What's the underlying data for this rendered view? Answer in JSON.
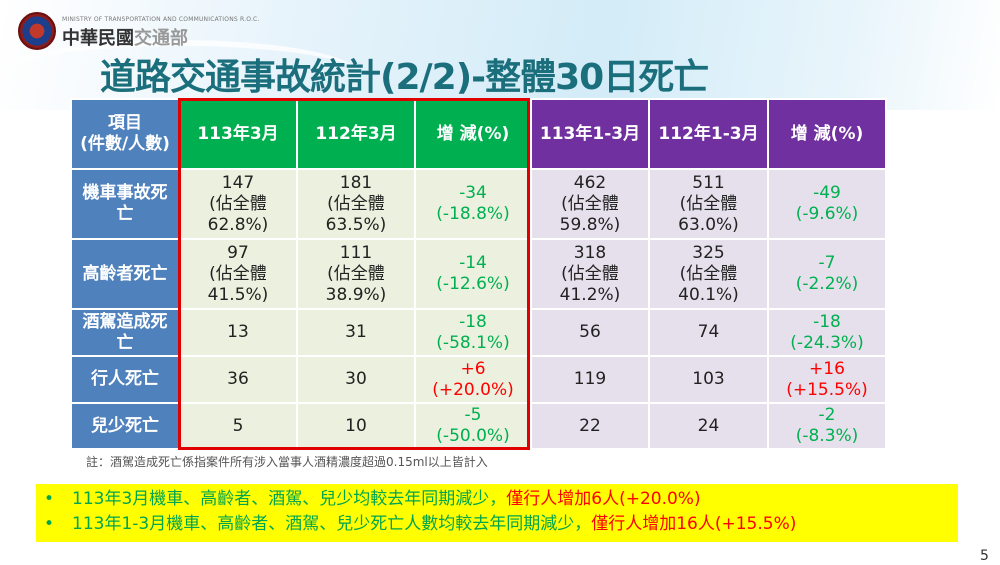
{
  "header": {
    "ministry_en": "MINISTRY OF TRANSPORTATION AND COMMUNICATIONS R.O.C.",
    "ministry_zh_a": "中華民國",
    "ministry_zh_b": "交通部",
    "title": "道路交通事故統計(2/2)-整體30日死亡"
  },
  "table": {
    "columns": [
      "項目\n(件數/人數)",
      "113年3月",
      "112年3月",
      "增  減(%)",
      "113年1-3月",
      "112年1-3月",
      "增  減(%)"
    ],
    "rows": [
      {
        "label": "機車事故死\n亡",
        "cells": [
          "147\n(佔全體\n62.8%)",
          "181\n(佔全體\n63.5%)",
          "-34\n(-18.8%)",
          "462\n(佔全體\n59.8%)",
          "511\n(佔全體\n63.0%)",
          "-49\n(-9.6%)"
        ]
      },
      {
        "label": "高齡者死亡",
        "cells": [
          "97\n(佔全體\n41.5%)",
          "111\n(佔全體\n38.9%)",
          "-14\n(-12.6%)",
          "318\n(佔全體\n41.2%)",
          "325\n(佔全體\n40.1%)",
          "-7\n(-2.2%)"
        ]
      },
      {
        "label": "酒駕造成死\n亡",
        "cells": [
          "13",
          "31",
          "-18\n(-58.1%)",
          "56",
          "74",
          "-18\n(-24.3%)"
        ]
      },
      {
        "label": "行人死亡",
        "cells": [
          "36",
          "30",
          "+6\n(+20.0%)",
          "119",
          "103",
          "+16\n(+15.5%)"
        ]
      },
      {
        "label": "兒少死亡",
        "cells": [
          "5",
          "10",
          "-5\n(-50.0%)",
          "22",
          "24",
          "-2\n(-8.3%)"
        ]
      }
    ]
  },
  "note": "註：酒駕造成死亡係指案件所有涉入當事人酒精濃度超過0.15ml以上皆計入",
  "summary": [
    {
      "bullet": "•",
      "text": "113年3月機車、高齡者、酒駕、兒少均較去年同期減少，",
      "highlight": "僅行人增加6人(+20.0%)"
    },
    {
      "bullet": "•",
      "text": "113年1-3月機車、高齡者、酒駕、兒少死亡人數均較去年同期減少，",
      "highlight": "僅行人增加16人(+15.5%)"
    }
  ],
  "page_number": "5",
  "colors": {
    "row_header": "#4f81bd",
    "month_header": "#00b050",
    "ytd_header": "#7030a0",
    "decrease": "#00b050",
    "increase": "#ff0000",
    "highlight_box": "#ffff00"
  }
}
